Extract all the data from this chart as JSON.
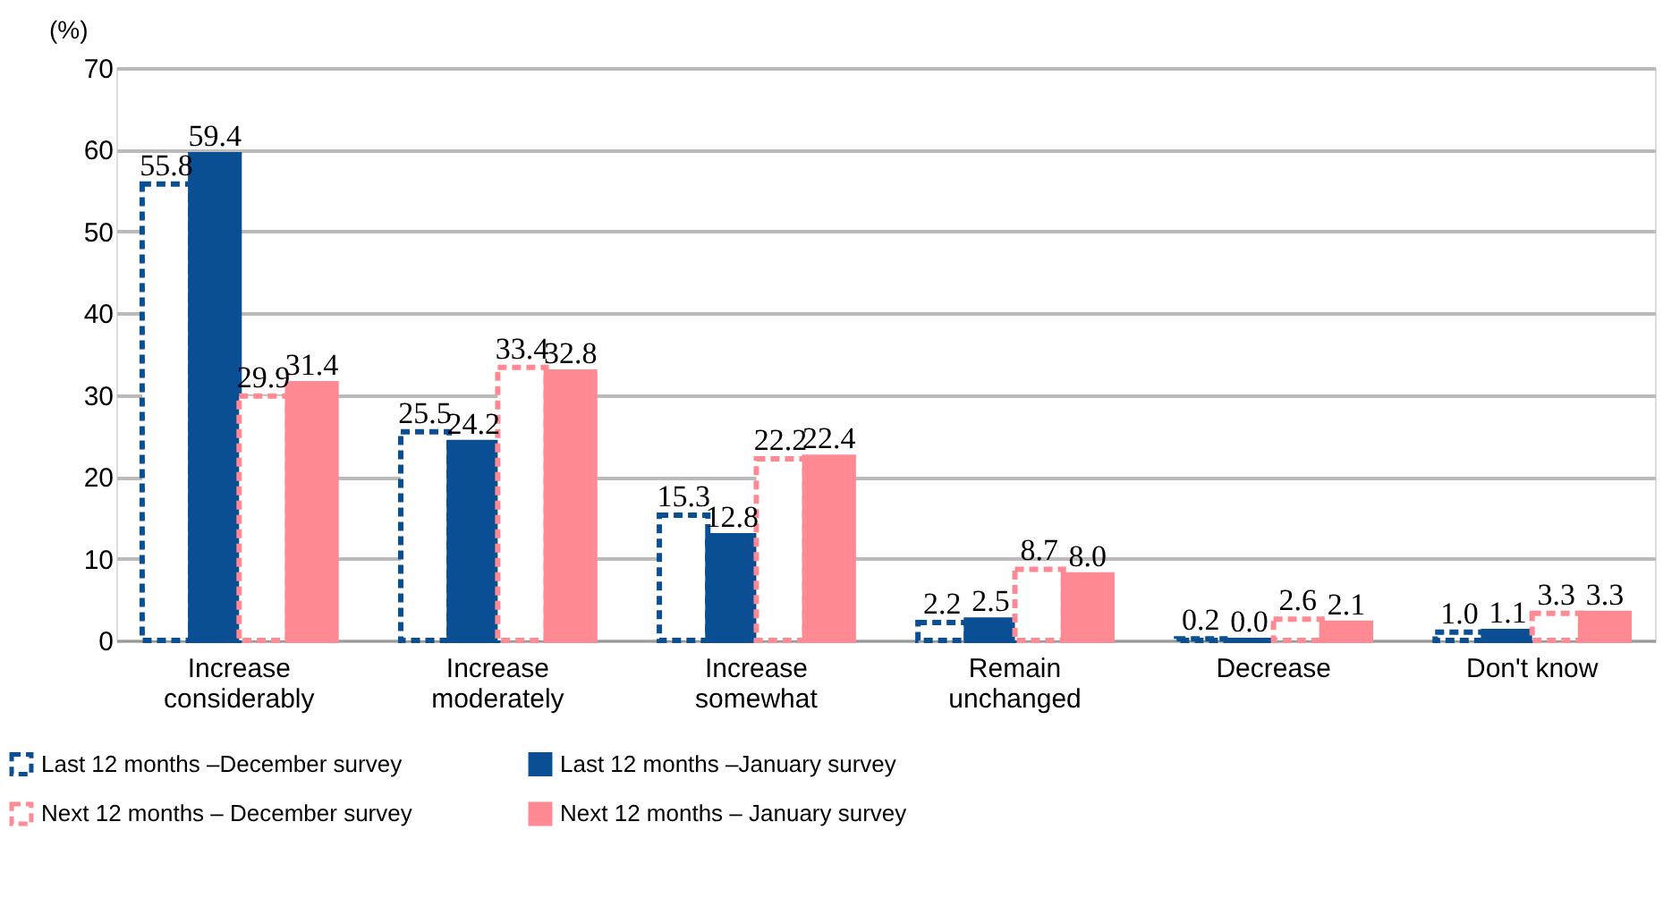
{
  "chart_data": {
    "type": "bar",
    "ylabel": "(%)",
    "categories": [
      "Increase considerably",
      "Increase moderately",
      "Increase somewhat",
      "Remain unchanged",
      "Decrease",
      "Don't know"
    ],
    "series": [
      {
        "name": "Last 12 months –December survey",
        "color": "#0a4f94",
        "line_style": "dashed",
        "values": [
          55.8,
          25.5,
          15.3,
          2.2,
          0.2,
          1.0
        ]
      },
      {
        "name": "Last 12 months –January survey",
        "color": "#0a4f94",
        "line_style": "solid",
        "values": [
          59.4,
          24.2,
          12.8,
          2.5,
          0.0,
          1.1
        ]
      },
      {
        "name": "Next 12 months – December survey",
        "color": "#ff8a94",
        "line_style": "dashed",
        "values": [
          29.9,
          33.4,
          22.2,
          8.7,
          2.6,
          3.3
        ]
      },
      {
        "name": "Next 12 months – January survey",
        "color": "#ff8a94",
        "line_style": "solid",
        "values": [
          31.4,
          32.8,
          22.4,
          8.0,
          2.1,
          3.3
        ]
      }
    ],
    "ylim": [
      0,
      70
    ],
    "yticks": [
      0,
      10,
      20,
      30,
      40,
      50,
      60,
      70
    ],
    "grid": "y",
    "legend": "bottom left",
    "value_labels": [
      [
        "55.8",
        "25.5",
        "15.3",
        "2.2",
        "0.2",
        "1.0"
      ],
      [
        "59.4",
        "24.2",
        "12.8",
        "2.5",
        "0.0",
        "1.1"
      ],
      [
        "29.9",
        "33.4",
        "22.2",
        "8.7",
        "2.6",
        "3.3"
      ],
      [
        "31.4",
        "32.8",
        "22.4",
        "8.0",
        "2.1",
        "3.3"
      ]
    ]
  }
}
